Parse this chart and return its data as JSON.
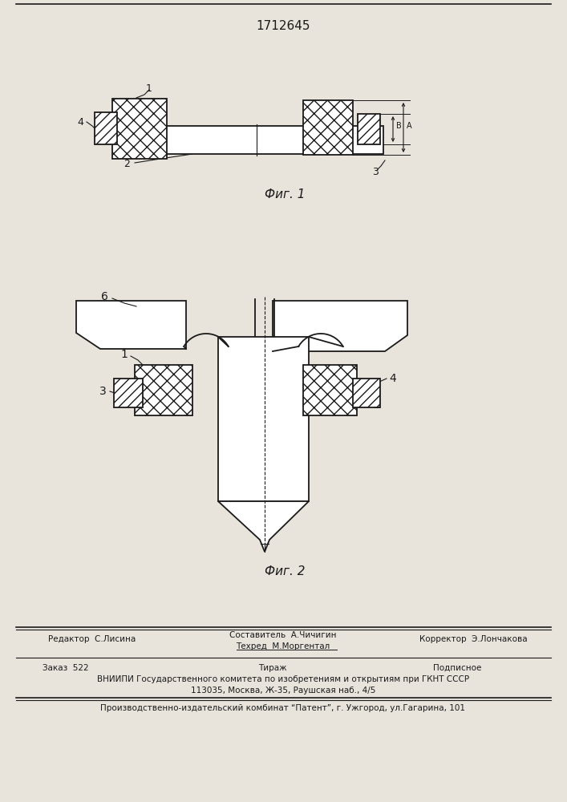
{
  "patent_number": "1712645",
  "fig1_label": "Фиг. 1",
  "fig2_label": "Фиг. 2",
  "bg_color": "#e8e4dc",
  "line_color": "#1a1a1a",
  "footer_left": "Редактор  С.Лисина",
  "footer_center1": "Составитель  А.Чичигин",
  "footer_center2": "Техред  М.Моргентал",
  "footer_right": "Корректор  Э.Лончакова",
  "footer_order": "Заказ  522",
  "footer_tirazh": "Тираж",
  "footer_podp": "Подписное",
  "footer_vniip": "ВНИИПИ Государственного комитета по изобретениям и открытиям при ГКНТ СССР",
  "footer_addr": "113035, Москва, Ж-35, Раушская наб., 4/5",
  "footer_patent": "Производственно-издательский комбинат “Патент”, г. Ужгород, ул.Гагарина, 101"
}
